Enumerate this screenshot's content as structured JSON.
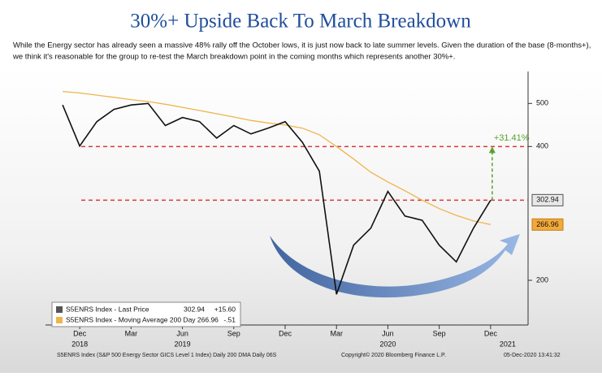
{
  "chart_data": {
    "type": "line",
    "title": "30%+ Upside Back To March Breakdown",
    "subtitle": [
      "While the Energy sector has already seen a massive 48% rally off the October lows, it is just now back to late summer levels. Given the duration of the base (8-months+),",
      "we think it's reasonable for the group to re-test the March breakdown point in the coming months which represents another 30%+."
    ],
    "x": [
      "2018-11",
      "2018-12",
      "2019-01",
      "2019-02",
      "2019-03",
      "2019-04",
      "2019-05",
      "2019-06",
      "2019-07",
      "2019-08",
      "2019-09",
      "2019-10",
      "2019-11",
      "2019-12",
      "2020-01",
      "2020-02",
      "2020-03",
      "2020-04",
      "2020-05",
      "2020-06",
      "2020-07",
      "2020-08",
      "2020-09",
      "2020-10",
      "2020-11",
      "2020-12"
    ],
    "series": [
      {
        "name": "S5ENRS Index - Last Price",
        "color": "#111111",
        "last": "302.94",
        "change": "+15.60",
        "values": [
          496,
          401,
          455,
          485,
          496,
          500,
          446,
          465,
          455,
          418,
          446,
          427,
          440,
          455,
          409,
          352,
          186,
          240,
          262,
          317,
          279,
          273,
          240,
          220,
          262,
          302.94
        ]
      },
      {
        "name": "S5ENRS Index - Moving Average 200 Day 266.96",
        "color": "#f0b44c",
        "change": "-.51",
        "values": [
          532,
          528,
          522,
          516,
          510,
          505,
          498,
          490,
          482,
          474,
          466,
          458,
          452,
          447,
          440,
          425,
          400,
          375,
          350,
          333,
          318,
          303,
          290,
          280,
          272,
          266.96
        ]
      }
    ],
    "xlim": [
      "2018-10",
      "2021-02"
    ],
    "xticks": [
      {
        "value": "2018-12",
        "label": "Dec"
      },
      {
        "value": "2019-03",
        "label": "Mar"
      },
      {
        "value": "2019-06",
        "label": "Jun"
      },
      {
        "value": "2019-09",
        "label": "Sep"
      },
      {
        "value": "2019-12",
        "label": "Dec"
      },
      {
        "value": "2020-03",
        "label": "Mar"
      },
      {
        "value": "2020-06",
        "label": "Jun"
      },
      {
        "value": "2020-09",
        "label": "Sep"
      },
      {
        "value": "2020-12",
        "label": "Dec"
      }
    ],
    "year_labels": [
      {
        "value": "2018-12",
        "label": "2018"
      },
      {
        "value": "2019-06",
        "label": "2019"
      },
      {
        "value": "2020-06",
        "label": "2020"
      },
      {
        "value": "2021-01",
        "label": "2021"
      }
    ],
    "ylim": [
      160,
      590
    ],
    "log_scale": true,
    "yticks": [
      200,
      400,
      500
    ],
    "reference_lines": [
      400,
      302.94
    ],
    "price_tags": [
      {
        "value": 302.94,
        "label": "302.94"
      },
      {
        "value": 266.96,
        "label": "266.96"
      }
    ],
    "annotation": "+31.41%",
    "footer": [
      "S5ENRS Index (S&P 500 Energy Sector GICS Level 1 Index) Daily 200 DMA  Daily 06S",
      "Copyright© 2020 Bloomberg Finance L.P.",
      "05-Dec-2020 13:41:32"
    ]
  }
}
